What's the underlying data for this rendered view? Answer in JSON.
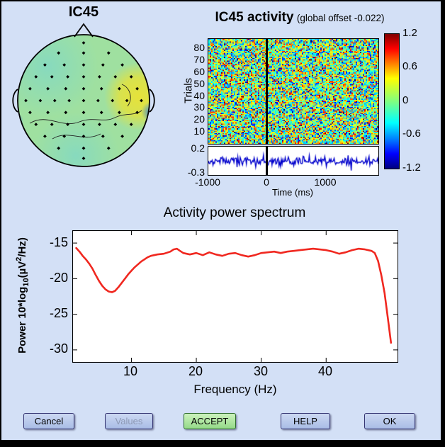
{
  "window": {
    "background": "#d3e0f6",
    "frame_color": "#000000"
  },
  "topoplot": {
    "title": "IC45"
  },
  "erp_panel": {
    "title": "IC45 activity",
    "subtitle": "(global offset -0.022)",
    "ylabel": "Trials",
    "yticks": [
      "80",
      "70",
      "60",
      "50",
      "40",
      "30",
      "20",
      "10"
    ],
    "colorbar_ticks": [
      "1.2",
      "0.6",
      "0",
      "-0.6",
      "-1.2"
    ],
    "trace_yticks": [
      "0.2",
      "-0.3"
    ],
    "xticks": [
      "-1000",
      "0",
      "1000"
    ],
    "xlabel": "Time (ms)"
  },
  "spectrum": {
    "title": "Activity power spectrum",
    "ylabel": {
      "p1": "Power 10*log",
      "sub": "10",
      "p2": "(µV",
      "sup": "2",
      "p3": "/Hz)"
    },
    "yticks": [
      "-15",
      "-20",
      "-25",
      "-30"
    ],
    "xticks": [
      "10",
      "20",
      "30",
      "40"
    ],
    "xlabel": "Frequency (Hz)"
  },
  "buttons": [
    {
      "label": "Cancel",
      "enabled": true
    },
    {
      "label": "Values",
      "enabled": false
    },
    {
      "label": "ACCEPT",
      "enabled": true,
      "accent": "green"
    },
    {
      "label": "HELP",
      "enabled": true
    },
    {
      "label": "OK",
      "enabled": true
    }
  ],
  "chart_data": [
    {
      "name": "topoplot",
      "type": "heatmap",
      "subtype": "scalp-topography",
      "title": "IC45",
      "colormap": "jet",
      "description": "Interpolated component scalp map, mostly light green (values near 0), yellow positive patch at right temporal region, small blue negative spots at left and right ear edges",
      "electrode_marker": "black diamond",
      "electrode_rows": [
        {
          "y": -0.97,
          "count": 1,
          "halfwidth": 0
        },
        {
          "y": -0.8,
          "count": 3,
          "halfwidth": 0.42
        },
        {
          "y": -0.6,
          "count": 5,
          "halfwidth": 0.65
        },
        {
          "y": -0.4,
          "count": 7,
          "halfwidth": 0.8
        },
        {
          "y": -0.2,
          "count": 7,
          "halfwidth": 0.9
        },
        {
          "y": 0.0,
          "count": 9,
          "halfwidth": 0.97
        },
        {
          "y": 0.2,
          "count": 7,
          "halfwidth": 0.9
        },
        {
          "y": 0.4,
          "count": 7,
          "halfwidth": 0.8
        },
        {
          "y": 0.6,
          "count": 5,
          "halfwidth": 0.65
        },
        {
          "y": 0.8,
          "count": 3,
          "halfwidth": 0.42
        },
        {
          "y": 0.97,
          "count": 1,
          "halfwidth": 0
        }
      ]
    },
    {
      "name": "erp_image",
      "type": "heatmap",
      "title": "IC45 activity",
      "global_offset": -0.022,
      "xlim_ms": [
        -1000,
        1900
      ],
      "ylabel": "Trials",
      "yticks": [
        80,
        70,
        60,
        50,
        40,
        30,
        20,
        10
      ],
      "n_trials": 88,
      "clim": [
        -1.2,
        1.2
      ],
      "colorbar_ticks": [
        1.2,
        0.6,
        0,
        -0.6,
        -1.2
      ],
      "colormap": "jet",
      "event_line_ms": 0,
      "content": "trial-by-trial activity, unstructured noise around 0 (green/cyan/yellow speckle with sparse red and blue)",
      "grid_cols": 120,
      "grid_rows": 88,
      "noise_sd": 0.5
    },
    {
      "name": "erp_trace",
      "type": "line",
      "series": "trial-average ERP",
      "xlim_ms": [
        -1000,
        1900
      ],
      "ylim": [
        -0.35,
        0.25
      ],
      "yticks": [
        0.2,
        -0.3
      ],
      "xticks": [
        -1000,
        0,
        1000
      ],
      "xlabel": "Time (ms)",
      "color": "#0000cc",
      "mean": -0.06,
      "noise_sd": 0.05,
      "event_line_ms": 0
    },
    {
      "name": "power_spectrum",
      "type": "line",
      "title": "Activity power spectrum",
      "xlabel": "Frequency (Hz)",
      "ylabel": "Power 10*log10(µV²/Hz)",
      "xlim": [
        1,
        51
      ],
      "ylim": [
        -31.7,
        -13.3
      ],
      "xticks": [
        10,
        20,
        30,
        40
      ],
      "yticks": [
        -15,
        -20,
        -25,
        -30
      ],
      "color": "#f02820",
      "x": [
        1.5,
        2,
        2.5,
        3,
        3.5,
        4,
        4.5,
        5,
        5.5,
        6,
        6.5,
        7,
        7.5,
        8,
        8.5,
        9,
        9.5,
        10,
        10.5,
        11,
        11.5,
        12,
        12.5,
        13,
        14,
        15,
        16,
        16.5,
        17,
        17.5,
        18,
        19,
        20,
        21,
        22,
        23,
        24,
        25,
        26,
        27,
        28,
        29,
        30,
        31,
        32,
        33,
        34,
        35,
        36,
        37,
        38,
        39,
        40,
        41,
        42,
        43,
        44,
        45,
        46,
        47,
        47.5,
        48,
        48.5,
        49,
        49.5,
        50
      ],
      "y": [
        -15.7,
        -16.2,
        -16.8,
        -17.3,
        -17.9,
        -18.6,
        -19.5,
        -20.3,
        -21,
        -21.5,
        -21.8,
        -21.9,
        -21.7,
        -21.2,
        -20.6,
        -20,
        -19.4,
        -18.9,
        -18.4,
        -18,
        -17.6,
        -17.3,
        -17,
        -16.8,
        -16.6,
        -16.5,
        -16.2,
        -15.9,
        -15.8,
        -16.1,
        -16.4,
        -16.6,
        -16.4,
        -16.7,
        -16.3,
        -16.6,
        -16.8,
        -16.5,
        -16.4,
        -16.7,
        -16.9,
        -16.7,
        -16.4,
        -16.3,
        -16.2,
        -16.4,
        -16.2,
        -16.1,
        -16,
        -15.9,
        -15.8,
        -15.9,
        -16,
        -16.2,
        -16.5,
        -16.3,
        -16,
        -15.8,
        -15.9,
        -16.1,
        -16.4,
        -17.5,
        -19.5,
        -22,
        -25.5,
        -29
      ]
    }
  ]
}
